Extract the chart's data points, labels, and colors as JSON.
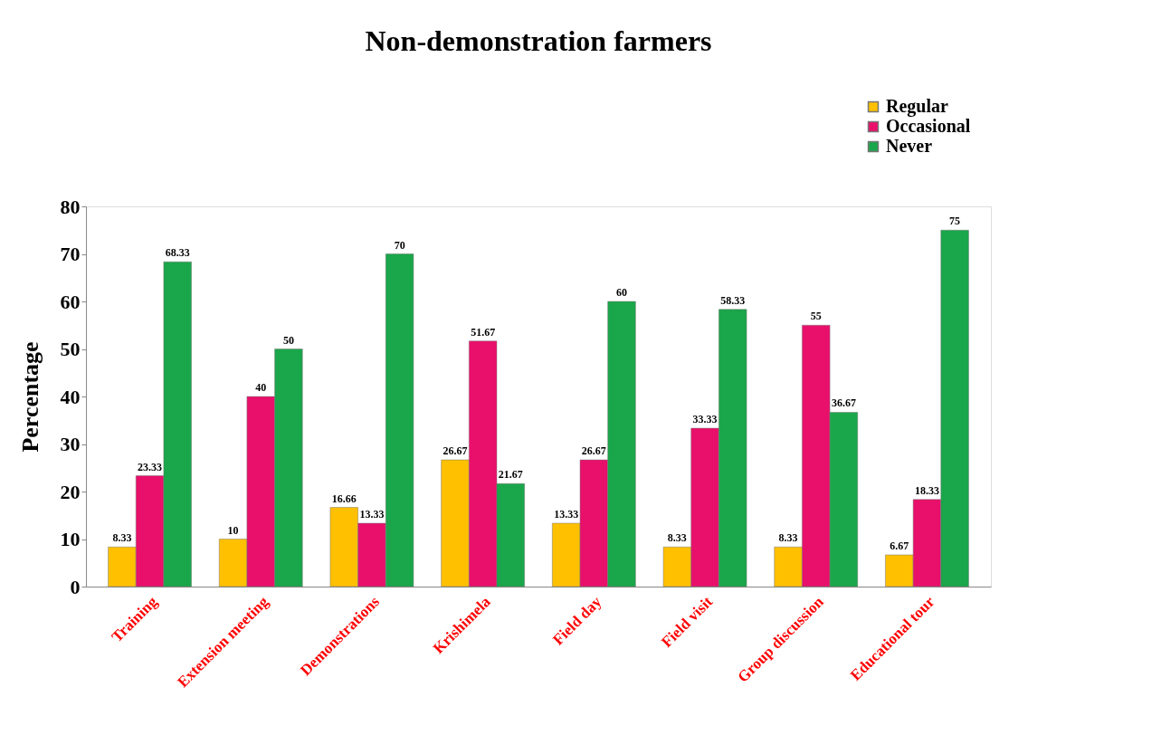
{
  "chart_data": {
    "type": "bar",
    "title": "Non-demonstration farmers",
    "ylabel": "Percentage",
    "categories": [
      "Training",
      "Extension meeting",
      "Demonstrations",
      "Krishimela",
      "Field day",
      "Field visit",
      "Group discussion",
      "Educational tour"
    ],
    "series": [
      {
        "name": "Regular",
        "color": "#ffc000",
        "values": [
          8.33,
          10,
          16.66,
          26.67,
          13.33,
          8.33,
          8.33,
          6.67
        ]
      },
      {
        "name": "Occasional",
        "color": "#e8106a",
        "values": [
          23.33,
          40,
          13.33,
          51.67,
          26.67,
          33.33,
          55,
          18.33
        ]
      },
      {
        "name": "Never",
        "color": "#1aa64a",
        "values": [
          68.33,
          50,
          70,
          21.67,
          60,
          58.33,
          36.67,
          75
        ]
      }
    ],
    "ylim": [
      0,
      80
    ],
    "yticks": [
      0,
      10,
      20,
      30,
      40,
      50,
      60,
      70,
      80
    ],
    "grid": false,
    "legend": "top right",
    "data_labels": true
  }
}
